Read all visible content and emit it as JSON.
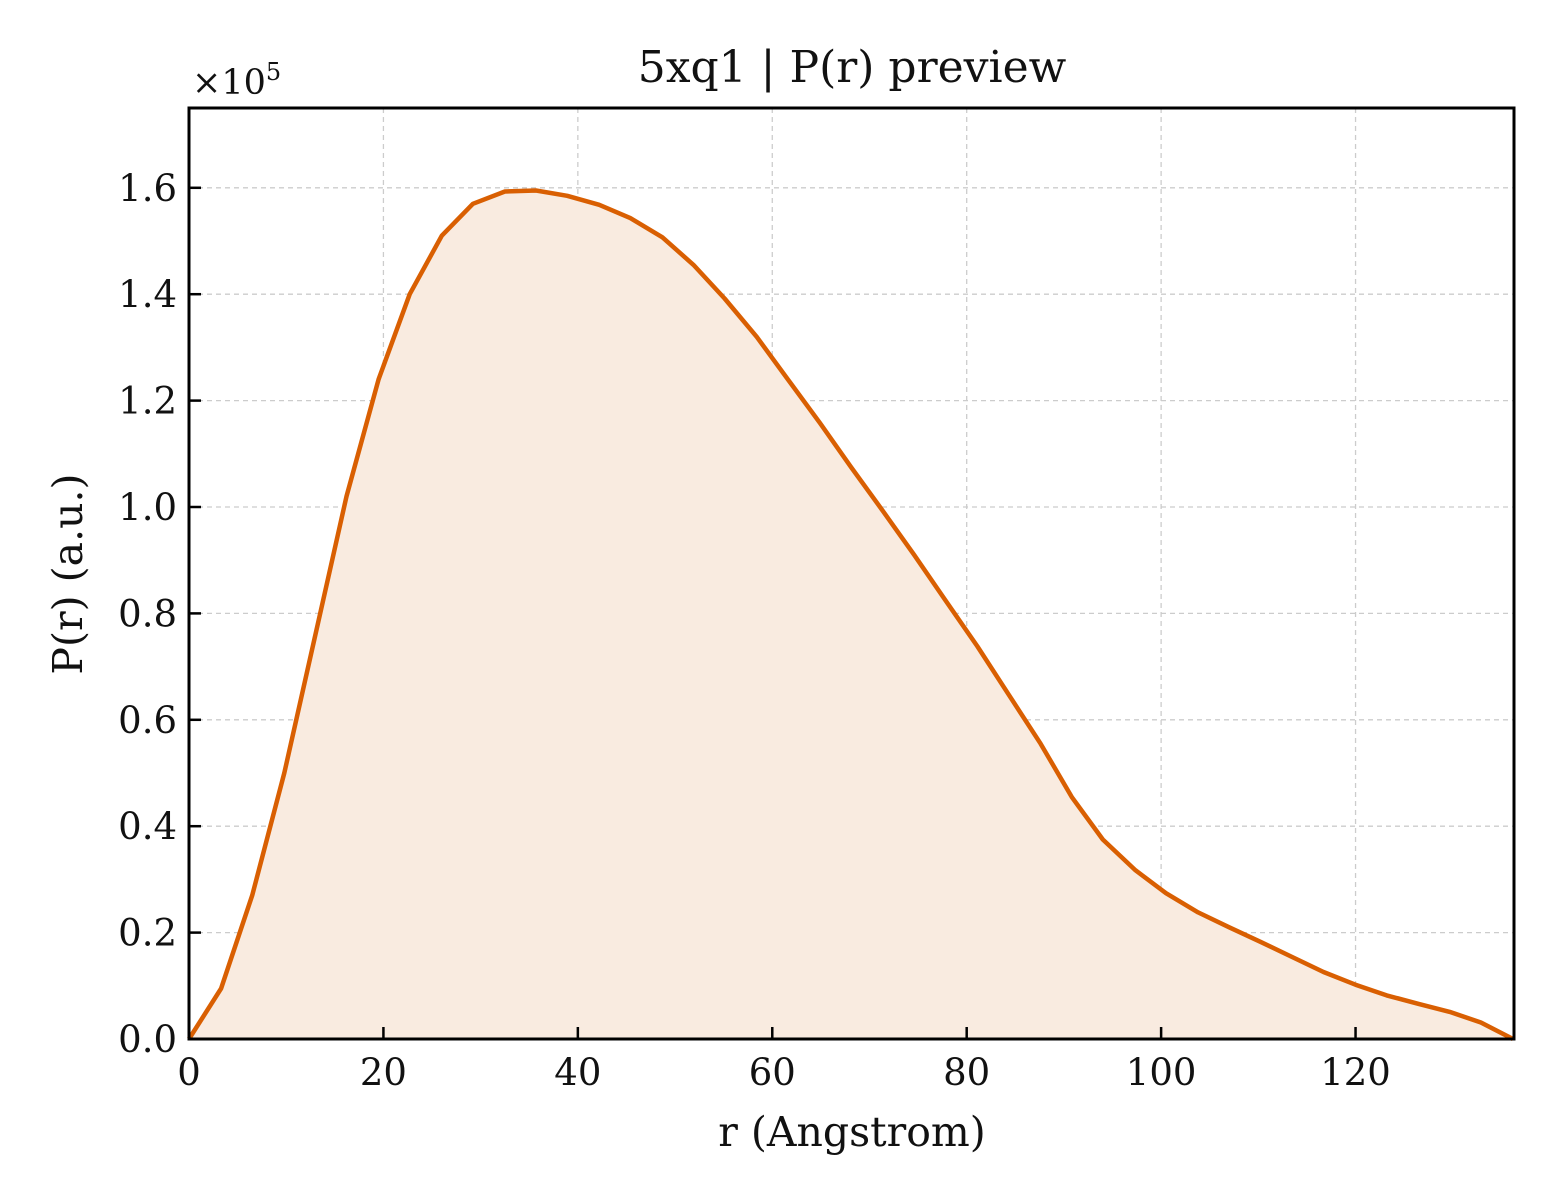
{
  "chart_data": {
    "type": "area",
    "title": "5xq1 | P(r) preview",
    "xlabel": "r (Angstrom)",
    "ylabel": "P(r) (a.u.)",
    "y_offset_text": "×10",
    "y_offset_exponent": "5",
    "xlim": [
      0,
      136.3
    ],
    "ylim": [
      0,
      1.75
    ],
    "x_ticks": [
      0,
      20,
      40,
      60,
      80,
      100,
      120
    ],
    "y_ticks": [
      0.0,
      0.2,
      0.4,
      0.6,
      0.8,
      1.0,
      1.2,
      1.4,
      1.6
    ],
    "x_tick_labels": [
      "0",
      "20",
      "40",
      "60",
      "80",
      "100",
      "120"
    ],
    "y_tick_labels": [
      "0.0",
      "0.2",
      "0.4",
      "0.6",
      "0.8",
      "1.0",
      "1.2",
      "1.4",
      "1.6"
    ],
    "grid": true,
    "line_color": "#d95f02",
    "fill_color": "#f9ebe0",
    "series": [
      {
        "x": [
          0,
          3.3,
          6.5,
          9.8,
          13.0,
          16.2,
          19.5,
          22.7,
          26.0,
          29.2,
          32.5,
          35.7,
          38.9,
          42.2,
          45.4,
          48.7,
          51.9,
          55.1,
          58.4,
          61.6,
          64.9,
          68.1,
          71.4,
          74.6,
          77.8,
          81.1,
          84.3,
          87.6,
          90.8,
          94.0,
          97.3,
          100.5,
          103.8,
          107.0,
          110.3,
          113.5,
          116.7,
          120.0,
          123.2,
          126.5,
          129.7,
          132.9,
          136.2
        ],
        "y": [
          0.0,
          0.095,
          0.27,
          0.5,
          0.76,
          1.02,
          1.24,
          1.4,
          1.51,
          1.57,
          1.593,
          1.595,
          1.585,
          1.568,
          1.543,
          1.507,
          1.455,
          1.392,
          1.32,
          1.24,
          1.158,
          1.075,
          0.992,
          0.91,
          0.825,
          0.738,
          0.648,
          0.555,
          0.455,
          0.375,
          0.318,
          0.274,
          0.238,
          0.21,
          0.182,
          0.154,
          0.126,
          0.102,
          0.082,
          0.066,
          0.051,
          0.031,
          0.0
        ]
      }
    ]
  }
}
